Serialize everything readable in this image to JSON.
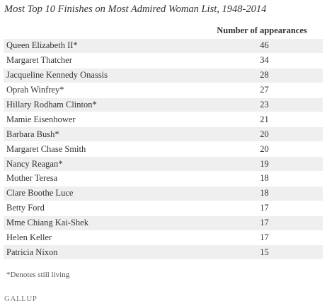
{
  "title": "Most Top 10 Finishes on Most Admired Woman List, 1948-2014",
  "table": {
    "header": "Number of appearances",
    "rows": [
      [
        "Queen Elizabeth II*",
        46
      ],
      [
        "Margaret Thatcher",
        34
      ],
      [
        "Jacqueline Kennedy Onassis",
        28
      ],
      [
        "Oprah Winfrey*",
        27
      ],
      [
        "Hillary Rodham Clinton*",
        23
      ],
      [
        "Mamie Eisenhower",
        21
      ],
      [
        "Barbara Bush*",
        20
      ],
      [
        "Margaret Chase Smith",
        20
      ],
      [
        "Nancy Reagan*",
        19
      ],
      [
        "Mother Teresa",
        18
      ],
      [
        "Clare Boothe Luce",
        18
      ],
      [
        "Betty Ford",
        17
      ],
      [
        "Mme Chiang Kai-Shek",
        17
      ],
      [
        "Helen Keller",
        17
      ],
      [
        "Patricia Nixon",
        15
      ]
    ]
  },
  "footnote": "*Denotes still living",
  "logo": "GALLUP"
}
